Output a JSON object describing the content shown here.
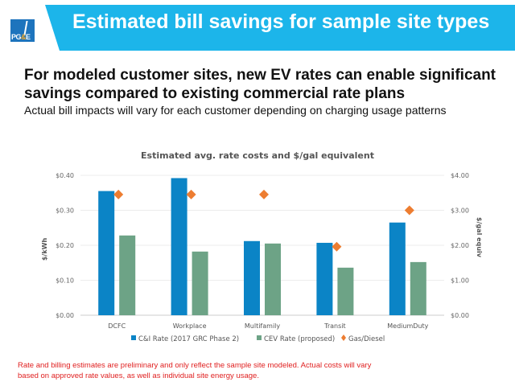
{
  "header": {
    "title": "Estimated bill savings for sample site types",
    "logo_text_1": "PG",
    "logo_text_amp": "&",
    "logo_text_2": "E",
    "brand_color": "#1cb5ea"
  },
  "headline": "For modeled customer sites, new EV rates can enable significant savings compared to existing commercial rate plans",
  "subheadline": "Actual bill impacts will vary for each customer depending on charging usage patterns",
  "footnote": "Rate and billing estimates are preliminary and only reflect the sample site modeled. Actual costs will vary based on approved rate values, as well as individual site energy usage.",
  "chart_data": {
    "type": "bar",
    "title": "Estimated avg. rate costs and $/gal equivalent",
    "categories": [
      "DCFC",
      "Workplace",
      "Multifamily",
      "Transit",
      "MediumDuty"
    ],
    "series": [
      {
        "name": "C&I Rate (2017 GRC Phase 2)",
        "axis": "left",
        "kind": "bar",
        "color": "#0b84c6",
        "values": [
          0.355,
          0.392,
          0.212,
          0.207,
          0.265
        ]
      },
      {
        "name": "CEV Rate (proposed)",
        "axis": "left",
        "kind": "bar",
        "color": "#6da386",
        "values": [
          0.228,
          0.182,
          0.205,
          0.136,
          0.152
        ]
      },
      {
        "name": "Gas/Diesel",
        "axis": "right",
        "kind": "marker",
        "marker": "diamond",
        "color": "#ed7d31",
        "values": [
          3.45,
          3.45,
          3.45,
          1.96,
          3.0
        ]
      }
    ],
    "ylabel": "$/kWh",
    "ylabel_right": "$/gal equiv",
    "ylim": [
      0,
      0.4
    ],
    "ylim_right": [
      0,
      4
    ],
    "yticks": [
      "$0.00",
      "$0.10",
      "$0.20",
      "$0.30",
      "$0.40"
    ],
    "yticks_right": [
      "$0.00",
      "$1.00",
      "$2.00",
      "$3.00",
      "$4.00"
    ],
    "grid": true,
    "legend": "bottom"
  }
}
